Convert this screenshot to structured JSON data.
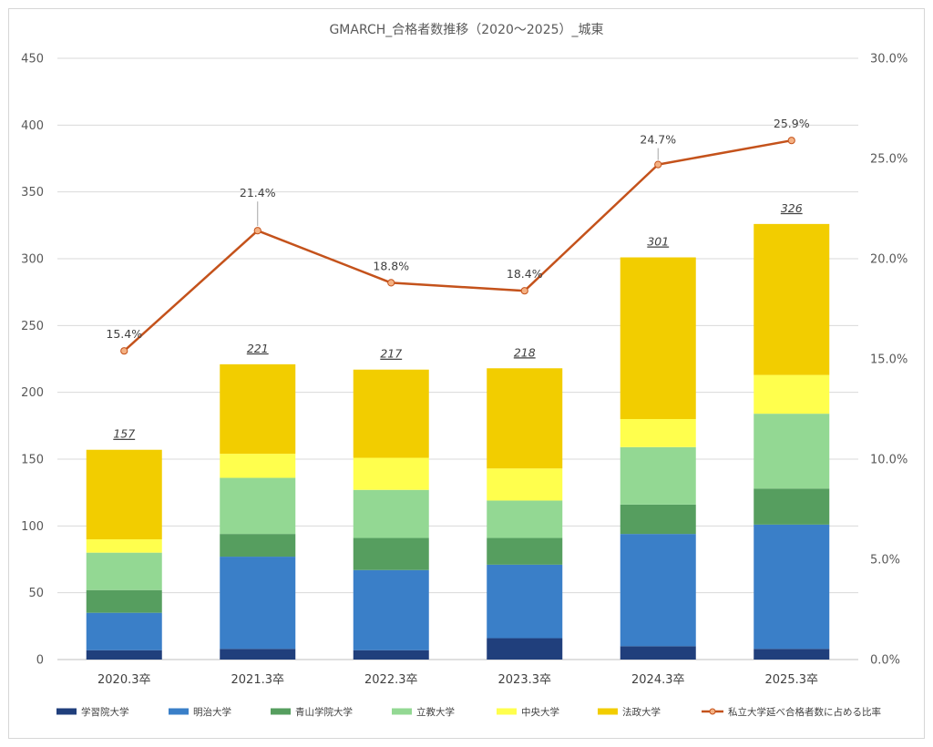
{
  "chart_data": {
    "type": "bar",
    "stacked": true,
    "title": "GMARCH_合格者数推移（2020～2025）_城東",
    "categories": [
      "2020.3卒",
      "2021.3卒",
      "2022.3卒",
      "2023.3卒",
      "2024.3卒",
      "2025.3卒"
    ],
    "ylim": [
      0,
      450
    ],
    "y_ticks": [
      "0",
      "50",
      "100",
      "150",
      "200",
      "250",
      "300",
      "350",
      "400",
      "450"
    ],
    "y2lim": [
      0,
      30
    ],
    "y2_ticks": [
      "0.0%",
      "5.0%",
      "10.0%",
      "15.0%",
      "20.0%",
      "25.0%",
      "30.0%"
    ],
    "grid": true,
    "legend_position": "bottom",
    "series": [
      {
        "name": "学習院大学",
        "color": "#203f7c",
        "values": [
          7,
          8,
          7,
          16,
          10,
          8
        ]
      },
      {
        "name": "明治大学",
        "color": "#3a7fc8",
        "values": [
          28,
          69,
          60,
          55,
          84,
          93
        ]
      },
      {
        "name": "青山学院大学",
        "color": "#569e5f",
        "values": [
          17,
          17,
          24,
          20,
          22,
          27
        ]
      },
      {
        "name": "立教大学",
        "color": "#93d893",
        "values": [
          28,
          42,
          36,
          28,
          43,
          56
        ]
      },
      {
        "name": "中央大学",
        "color": "#ffff4d",
        "values": [
          10,
          18,
          24,
          24,
          21,
          29
        ]
      },
      {
        "name": "法政大学",
        "color": "#f2cd00",
        "values": [
          67,
          67,
          66,
          75,
          121,
          113
        ]
      }
    ],
    "totals": [
      "157",
      "221",
      "217",
      "218",
      "301",
      "326"
    ],
    "line_series": {
      "name": "私立大学延べ合格者数に占める比率",
      "color": "#c4521b",
      "axis": "right",
      "values": [
        15.4,
        21.4,
        18.8,
        18.4,
        24.7,
        25.9
      ],
      "labels": [
        "15.4%",
        "21.4%",
        "18.8%",
        "18.4%",
        "24.7%",
        "25.9%"
      ]
    }
  }
}
